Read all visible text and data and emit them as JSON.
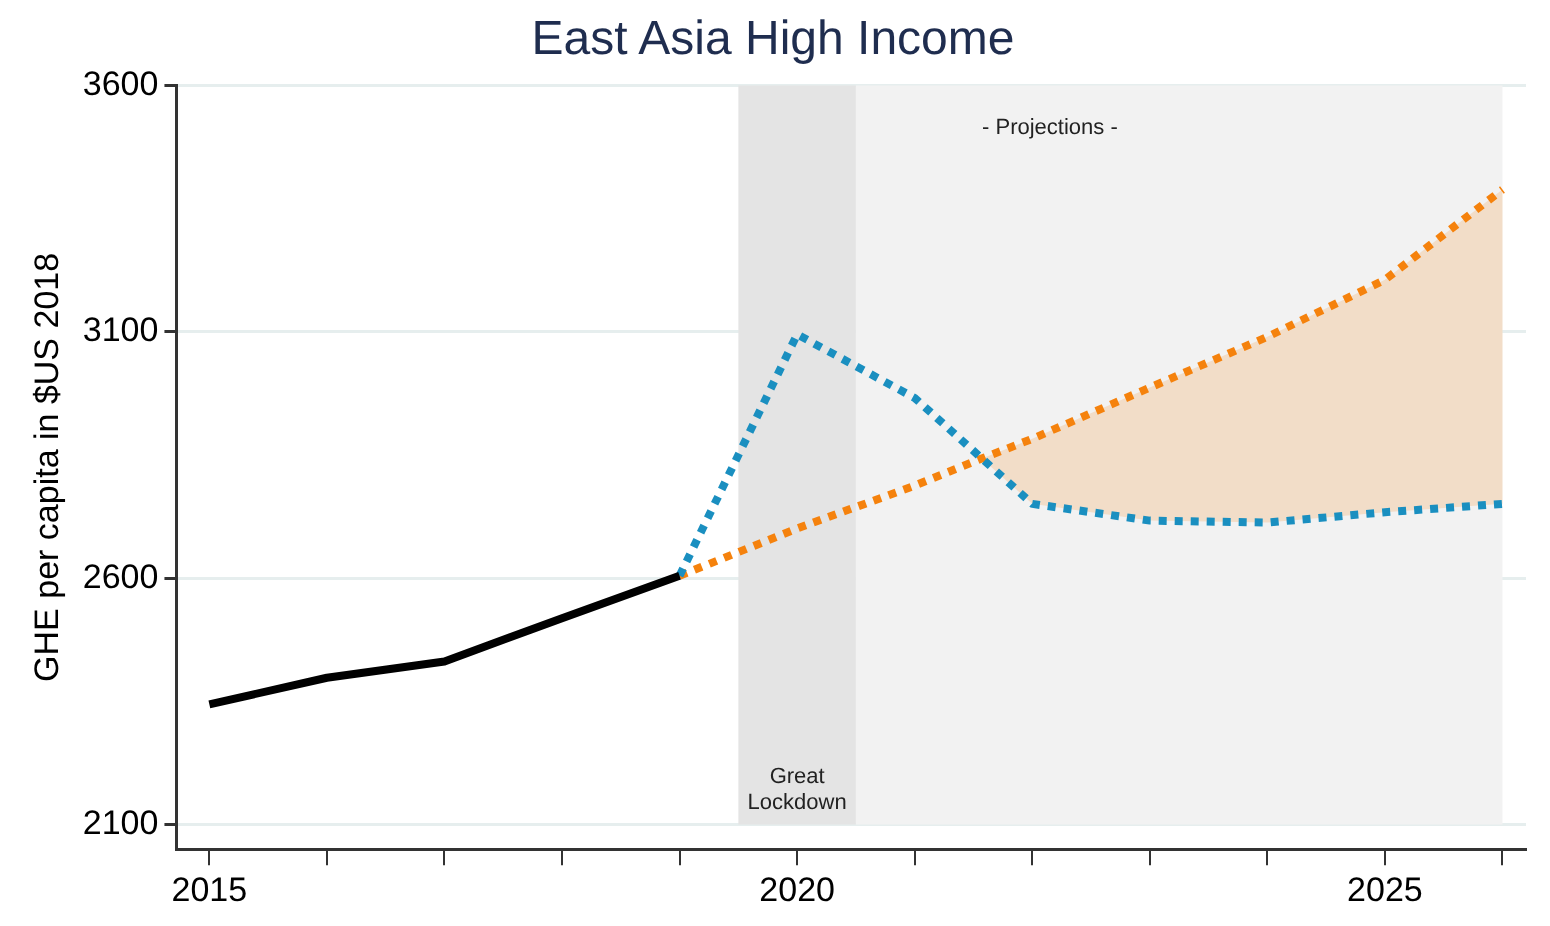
{
  "chart_data": {
    "type": "line",
    "title": "East Asia High Income",
    "ylabel": "GHE per capita in $US 2018",
    "xlim": [
      2014.72,
      2026.2
    ],
    "ylim": [
      2050,
      3600
    ],
    "xticks": [
      2015,
      {
        "value": 2016,
        "label": null
      },
      {
        "value": 2017,
        "label": null
      },
      {
        "value": 2018,
        "label": null
      },
      {
        "value": 2019,
        "label": null
      },
      2020,
      {
        "value": 2021,
        "label": null
      },
      {
        "value": 2022,
        "label": null
      },
      {
        "value": 2023,
        "label": null
      },
      {
        "value": 2024,
        "label": null
      },
      2025,
      {
        "value": 2026,
        "label": null
      }
    ],
    "yticks": [
      2100,
      2600,
      3100,
      3600
    ],
    "grid": "y",
    "marker": "none",
    "bands": [
      {
        "axis": "x",
        "from": 2019.5,
        "to": 2020.5,
        "label": "Great Lockdown",
        "color": "#e4e4e4"
      },
      {
        "axis": "x",
        "from": 2020.5,
        "to": 2026,
        "label": "- Projections -",
        "color": "#f2f2f2"
      }
    ],
    "series": [
      {
        "color": "#000000",
        "line_style": "solid",
        "x": [
          2015,
          2016,
          2017,
          2018,
          2019
        ],
        "values": [
          2344,
          2398,
          2431,
          2519,
          2605
        ]
      },
      {
        "color": "#1a8fc0",
        "line_style": "dotted",
        "x": [
          2019,
          2020,
          2021,
          2022,
          2023,
          2024,
          2025,
          2026
        ],
        "values": [
          2605,
          3095,
          2966,
          2751,
          2717,
          2713,
          2734,
          2751
        ]
      },
      {
        "color": "#f5820d",
        "line_style": "dotted",
        "x": [
          2019,
          2020,
          2021,
          2021.57,
          2022,
          2023,
          2024,
          2025,
          2026
        ],
        "values": [
          2605,
          2701,
          2788,
          2843,
          2883,
          2987,
          3090,
          3206,
          3389
        ],
        "lower": [
          null,
          null,
          null,
          2843,
          2751,
          2717,
          2713,
          2734,
          2751
        ],
        "upper": [
          null,
          null,
          null,
          2843,
          2883,
          2987,
          3090,
          3206,
          3389
        ]
      }
    ]
  }
}
